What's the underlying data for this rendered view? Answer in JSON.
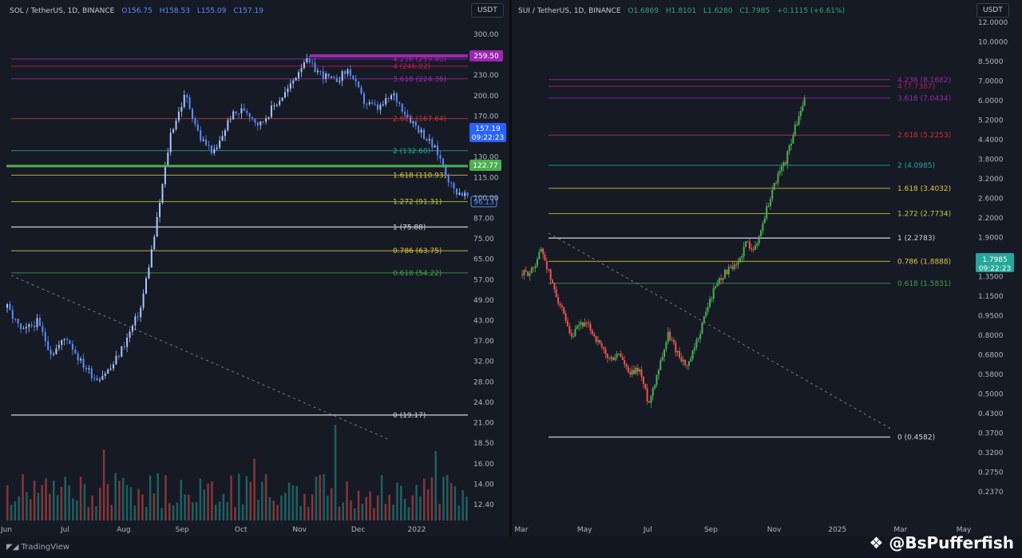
{
  "left": {
    "header": {
      "pair": "SOL / TetherUS, 1D, BINANCE",
      "open": "O156.75",
      "high": "H158.53",
      "low": "L155.09",
      "close": "C157.19"
    },
    "currency": "USDT",
    "y_ticks": [
      "300.00",
      "260.00",
      "230.00",
      "200.00",
      "170.00",
      "150.00",
      "130.00",
      "115.00",
      "100.00",
      "87.00",
      "75.00",
      "65.00",
      "57.00",
      "49.00",
      "43.00",
      "37.00",
      "32.00",
      "28.00",
      "24.00",
      "21.00",
      "18.50",
      "16.00",
      "14.00",
      "12.40"
    ],
    "x_ticks": [
      "Jun",
      "Jul",
      "Aug",
      "Sep",
      "Oct",
      "Nov",
      "Dec",
      "2022"
    ],
    "fib_levels": [
      {
        "label": "4.236 (259.40)",
        "color": "#9c27b0"
      },
      {
        "label": "4 (246.02)",
        "color": "#c2185b"
      },
      {
        "label": "3.618 (224.36)",
        "color": "#9c27b0"
      },
      {
        "label": "2.618 (167.64)",
        "color": "#d32f2f"
      },
      {
        "label": "2 (132.60)",
        "color": "#26a69a"
      },
      {
        "label": "1.618 (110.93)",
        "color": "#e0c53a"
      },
      {
        "label": "1.272 (91.31)",
        "color": "#c0ca33"
      },
      {
        "label": "1 (75.88)",
        "color": "#d1d4dc"
      },
      {
        "label": "0.786 (63.75)",
        "color": "#e0c53a"
      },
      {
        "label": "0.618 (54.22)",
        "color": "#43a047"
      },
      {
        "label": "0 (19.17)",
        "color": "#d1d4dc"
      }
    ],
    "price_tags": {
      "purple": "259.50",
      "current": "157.19",
      "current_time": "09:22:23",
      "green": "122.77",
      "low": "96.13"
    }
  },
  "right": {
    "header": {
      "pair": "SUI / TetherUS, 1D, BINANCE",
      "open": "O1.6869",
      "high": "H1.8101",
      "low": "L1.6280",
      "close": "C1.7985",
      "change": "+0.1115 (+6.61%)"
    },
    "currency": "USDT",
    "y_ticks": [
      "12.0000",
      "10.0000",
      "8.5000",
      "7.0000",
      "6.0000",
      "5.2000",
      "4.4000",
      "3.8000",
      "3.2000",
      "2.6000",
      "2.2000",
      "1.9000",
      "1.6000",
      "1.3500",
      "1.1500",
      "0.9500",
      "0.8000",
      "0.6800",
      "0.5800",
      "0.5000",
      "0.4300",
      "0.3700",
      "0.3200",
      "0.2750",
      "0.2370"
    ],
    "x_ticks": [
      "Mar",
      "May",
      "Jul",
      "Sep",
      "Nov",
      "2025",
      "Mar",
      "May"
    ],
    "fib_levels": [
      {
        "label": "4.236 (8.1682)",
        "color": "#9c27b0"
      },
      {
        "label": "4 (7.7387)",
        "color": "#c2185b"
      },
      {
        "label": "3.618 (7.0434)",
        "color": "#9c27b0"
      },
      {
        "label": "2.618 (5.2253)",
        "color": "#d32f2f"
      },
      {
        "label": "2 (4.0985)",
        "color": "#26a69a"
      },
      {
        "label": "1.618 (3.4032)",
        "color": "#e0c53a"
      },
      {
        "label": "1.272 (2.7734)",
        "color": "#c0ca33"
      },
      {
        "label": "1 (2.2783)",
        "color": "#d1d4dc"
      },
      {
        "label": "0.786 (1.8888)",
        "color": "#e0c53a"
      },
      {
        "label": "0.618 (1.5831)",
        "color": "#43a047"
      },
      {
        "label": "0 (0.4582)",
        "color": "#d1d4dc"
      }
    ],
    "price_tags": {
      "current": "1.7985",
      "current_time": "09:22:23"
    }
  },
  "footer": {
    "brand": "TradingView",
    "watermark": "@BsPufferfish"
  },
  "chart_data": [
    {
      "type": "candlestick",
      "title": "SOL / TetherUS, 1D, BINANCE",
      "ylabel": "USDT",
      "yscale": "log",
      "ylim": [
        12,
        320
      ],
      "x": [
        "Jun",
        "Jul",
        "Aug",
        "Sep",
        "Oct",
        "Nov",
        "Dec",
        "2022"
      ],
      "close_path": [
        42,
        35,
        38,
        30,
        34,
        28,
        25,
        27,
        33,
        42,
        75,
        150,
        200,
        145,
        130,
        170,
        180,
        160,
        185,
        210,
        258,
        235,
        220,
        240,
        190,
        180,
        200,
        170,
        150,
        130,
        100,
        95
      ],
      "fibonacci": [
        259.4,
        246.02,
        224.36,
        167.64,
        132.6,
        110.93,
        91.31,
        75.88,
        63.75,
        54.22,
        19.17
      ]
    },
    {
      "type": "candlestick",
      "title": "SUI / TetherUS, 1D, BINANCE",
      "ylabel": "USDT",
      "yscale": "log",
      "ylim": [
        0.237,
        12
      ],
      "x": [
        "Mar",
        "May",
        "Jul",
        "Sep",
        "Nov",
        "2025",
        "Mar",
        "May"
      ],
      "close_path": [
        1.7,
        1.75,
        2.1,
        1.6,
        1.3,
        1.0,
        1.15,
        1.1,
        0.95,
        0.85,
        0.9,
        0.75,
        0.8,
        0.6,
        0.8,
        1.05,
        0.9,
        0.8,
        1.0,
        1.3,
        1.6,
        1.75,
        1.8,
        2.2,
        2.1,
        2.8,
        3.6,
        4.2,
        5.5,
        6.9
      ],
      "fibonacci": [
        8.1682,
        7.7387,
        7.0434,
        5.2253,
        4.0985,
        3.4032,
        2.7734,
        2.2783,
        1.8888,
        1.5831,
        0.4582
      ]
    }
  ]
}
